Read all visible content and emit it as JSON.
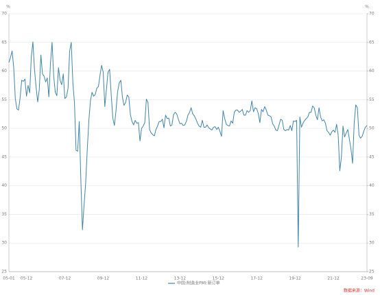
{
  "chart_data": {
    "type": "line",
    "ylabel": "%",
    "y2label": "%",
    "categories": [
      "05-01",
      null,
      null,
      null,
      null,
      null,
      null,
      null,
      null,
      null,
      null,
      "05-12",
      null,
      null,
      null,
      null,
      null,
      null,
      null,
      null,
      null,
      null,
      null,
      null,
      null,
      null,
      null,
      null,
      null,
      null,
      null,
      null,
      null,
      null,
      null,
      "07-12",
      null,
      null,
      null,
      null,
      null,
      null,
      null,
      null,
      null,
      null,
      null,
      null,
      null,
      null,
      null,
      null,
      null,
      null,
      null,
      null,
      null,
      null,
      null,
      "09-12",
      null,
      null,
      null,
      null,
      null,
      null,
      null,
      null,
      null,
      null,
      null,
      null,
      null,
      null,
      null,
      null,
      null,
      null,
      null,
      null,
      null,
      null,
      null,
      "11-12",
      null,
      null,
      null,
      null,
      null,
      null,
      null,
      null,
      null,
      null,
      null,
      null,
      null,
      null,
      null,
      null,
      null,
      null,
      null,
      null,
      null,
      null,
      null,
      "13-12",
      null,
      null,
      null,
      null,
      null,
      null,
      null,
      null,
      null,
      null,
      null,
      null,
      null,
      null,
      null,
      null,
      null,
      null,
      null,
      null,
      null,
      null,
      null,
      "15-12",
      null,
      null,
      null,
      null,
      null,
      null,
      null,
      null,
      null,
      null,
      null,
      null,
      null,
      null,
      null,
      null,
      null,
      null,
      null,
      null,
      null,
      null,
      null,
      "17-12",
      null,
      null,
      null,
      null,
      null,
      null,
      null,
      null,
      null,
      null,
      null,
      null,
      null,
      null,
      null,
      null,
      null,
      null,
      null,
      null,
      null,
      null,
      null,
      "19-12",
      null,
      null,
      null,
      null,
      null,
      null,
      null,
      null,
      null,
      null,
      null,
      null,
      null,
      null,
      null,
      null,
      null,
      null,
      null,
      null,
      null,
      null,
      null,
      "21-12",
      null,
      null,
      null,
      null,
      null,
      null,
      null,
      null,
      null,
      null,
      null,
      null,
      null,
      null,
      null,
      null,
      null,
      null,
      null,
      null,
      "23-09"
    ],
    "series": [
      {
        "name": "中国:制造业PMI:新订单",
        "color": "#3f84a6",
        "values": [
          61.5,
          62.4,
          63.5,
          60.6,
          55.2,
          53.4,
          53.2,
          55.3,
          58.4,
          58.2,
          58.6,
          55.6,
          57.5,
          56.2,
          62.5,
          65.1,
          60.3,
          57.2,
          54.6,
          56.8,
          62.8,
          59.5,
          59.1,
          58.1,
          58.8,
          55.5,
          61.4,
          65.0,
          59.2,
          56.3,
          55.7,
          60.6,
          58.4,
          57.6,
          59.5,
          55.2,
          55.5,
          57.0,
          63.5,
          65.0,
          58.0,
          54.5,
          46.2,
          46.0,
          51.2,
          41.0,
          32.3,
          36.6,
          40.4,
          46.2,
          51.3,
          54.8,
          56.3,
          55.6,
          55.9,
          57.0,
          57.3,
          59.3,
          61.0,
          59.8,
          53.8,
          56.8,
          59.8,
          60.3,
          55.9,
          51.8,
          50.5,
          53.1,
          56.4,
          57.9,
          58.4,
          55.5,
          54.0,
          54.5,
          55.8,
          55.5,
          52.4,
          51.2,
          50.6,
          51.4,
          50.9,
          51.0,
          47.8,
          50.0,
          50.4,
          51.0,
          55.1,
          54.5,
          49.8,
          49.2,
          48.9,
          48.7,
          49.8,
          50.4,
          51.2,
          51.2,
          51.6,
          50.1,
          52.3,
          51.7,
          51.8,
          50.4,
          50.6,
          52.4,
          52.8,
          52.5,
          51.6,
          50.8,
          50.9,
          50.5,
          50.6,
          51.2,
          52.3,
          52.8,
          53.6,
          52.5,
          52.2,
          51.6,
          50.9,
          50.4,
          50.2,
          51.4,
          50.2,
          50.2,
          50.6,
          50.1,
          49.9,
          49.7,
          50.2,
          50.3,
          49.8,
          50.2,
          49.5,
          48.6,
          53.1,
          51.7,
          50.7,
          50.5,
          50.4,
          51.3,
          50.9,
          52.8,
          53.2,
          53.2,
          52.8,
          53.0,
          53.3,
          52.3,
          52.3,
          53.1,
          52.8,
          53.1,
          54.8,
          52.9,
          53.6,
          53.4,
          52.6,
          51.0,
          53.3,
          52.9,
          53.8,
          53.2,
          52.3,
          52.2,
          52.0,
          50.8,
          50.4,
          49.7,
          49.6,
          50.6,
          51.6,
          51.4,
          49.8,
          49.6,
          49.8,
          49.7,
          50.5,
          49.6,
          51.3,
          51.2,
          51.4,
          29.3,
          52.0,
          50.2,
          50.9,
          51.4,
          51.7,
          52.0,
          52.8,
          52.8,
          53.9,
          53.6,
          52.3,
          51.5,
          53.6,
          52.0,
          51.3,
          51.5,
          50.9,
          49.6,
          49.3,
          48.8,
          49.4,
          49.7,
          49.3,
          50.7,
          48.8,
          42.6,
          45.0,
          50.4,
          48.5,
          49.2,
          49.8,
          48.1,
          46.4,
          43.9,
          50.9,
          54.1,
          53.6,
          48.8,
          48.3,
          48.6,
          49.5,
          50.2,
          50.5
        ]
      }
    ],
    "ylim": [
      25,
      70
    ],
    "yticks": [
      25,
      30,
      35,
      40,
      45,
      50,
      55,
      60,
      65,
      70
    ],
    "y2lim": [
      25,
      70
    ],
    "y2ticks": [
      25,
      30,
      35,
      40,
      45,
      50,
      55,
      60,
      65,
      70
    ],
    "grid": true,
    "legend": "bottom",
    "source": "数据来源：Wind"
  }
}
